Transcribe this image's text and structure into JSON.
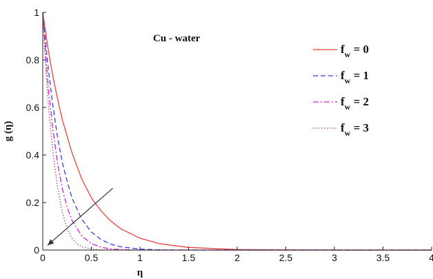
{
  "chart_data": {
    "type": "line",
    "xlabel": "η",
    "ylabel": "g (η)",
    "xlim": [
      0,
      4
    ],
    "ylim": [
      0,
      1
    ],
    "x_ticks": [
      "0",
      "0.5",
      "1",
      "1.5",
      "2",
      "2.5",
      "3",
      "3.5",
      "4"
    ],
    "y_ticks": [
      "0",
      "0.2",
      "0.4",
      "0.6",
      "0.8",
      "1"
    ],
    "grid": false,
    "annotation": "Cu - water",
    "arrow": {
      "from": [
        0.72,
        0.26
      ],
      "to": [
        0.05,
        0.02
      ]
    },
    "legend_position": "top-right",
    "series": [
      {
        "name_main": "f",
        "name_sub": "w",
        "name_rest": " = 0",
        "color": "#e8413f",
        "dash": "",
        "x": [
          0,
          0.05,
          0.1,
          0.15,
          0.2,
          0.3,
          0.4,
          0.5,
          0.6,
          0.7,
          0.8,
          1.0,
          1.2,
          1.5,
          2.0,
          2.5,
          3.0,
          3.5,
          4.0
        ],
        "y": [
          1.0,
          0.86,
          0.74,
          0.64,
          0.55,
          0.41,
          0.3,
          0.22,
          0.165,
          0.122,
          0.09,
          0.05,
          0.027,
          0.011,
          0.002,
          0.0005,
          0.0001,
          0,
          0
        ]
      },
      {
        "name_main": "f",
        "name_sub": "w",
        "name_rest": " = 1",
        "color": "#3a3ae0",
        "dash": "7,4",
        "x": [
          0,
          0.05,
          0.1,
          0.15,
          0.2,
          0.25,
          0.3,
          0.4,
          0.5,
          0.6,
          0.7,
          0.8,
          1.0,
          1.2,
          1.5,
          2.0,
          4.0
        ],
        "y": [
          1.0,
          0.79,
          0.62,
          0.48,
          0.37,
          0.29,
          0.22,
          0.13,
          0.076,
          0.044,
          0.025,
          0.014,
          0.004,
          0.001,
          0,
          0,
          0
        ]
      },
      {
        "name_main": "f",
        "name_sub": "w",
        "name_rest": " = 2",
        "color": "#d21fd2",
        "dash": "8,3,2,3",
        "x": [
          0,
          0.03,
          0.06,
          0.1,
          0.15,
          0.2,
          0.25,
          0.3,
          0.4,
          0.5,
          0.6,
          0.7,
          0.8,
          1.0,
          1.5,
          4.0
        ],
        "y": [
          1.0,
          0.82,
          0.67,
          0.52,
          0.37,
          0.26,
          0.18,
          0.125,
          0.06,
          0.027,
          0.012,
          0.005,
          0.002,
          0,
          0,
          0
        ]
      },
      {
        "name_main": "f",
        "name_sub": "w",
        "name_rest": " = 3",
        "color": "#a04a4a",
        "dash": "1.5,2.5",
        "x": [
          0,
          0.02,
          0.04,
          0.06,
          0.08,
          0.1,
          0.12,
          0.15,
          0.2,
          0.25,
          0.3,
          0.35,
          0.4,
          0.5,
          0.6,
          1.0,
          4.0
        ],
        "y": [
          1.0,
          0.84,
          0.71,
          0.6,
          0.51,
          0.43,
          0.36,
          0.27,
          0.16,
          0.09,
          0.05,
          0.027,
          0.014,
          0.004,
          0.001,
          0,
          0
        ]
      }
    ]
  }
}
